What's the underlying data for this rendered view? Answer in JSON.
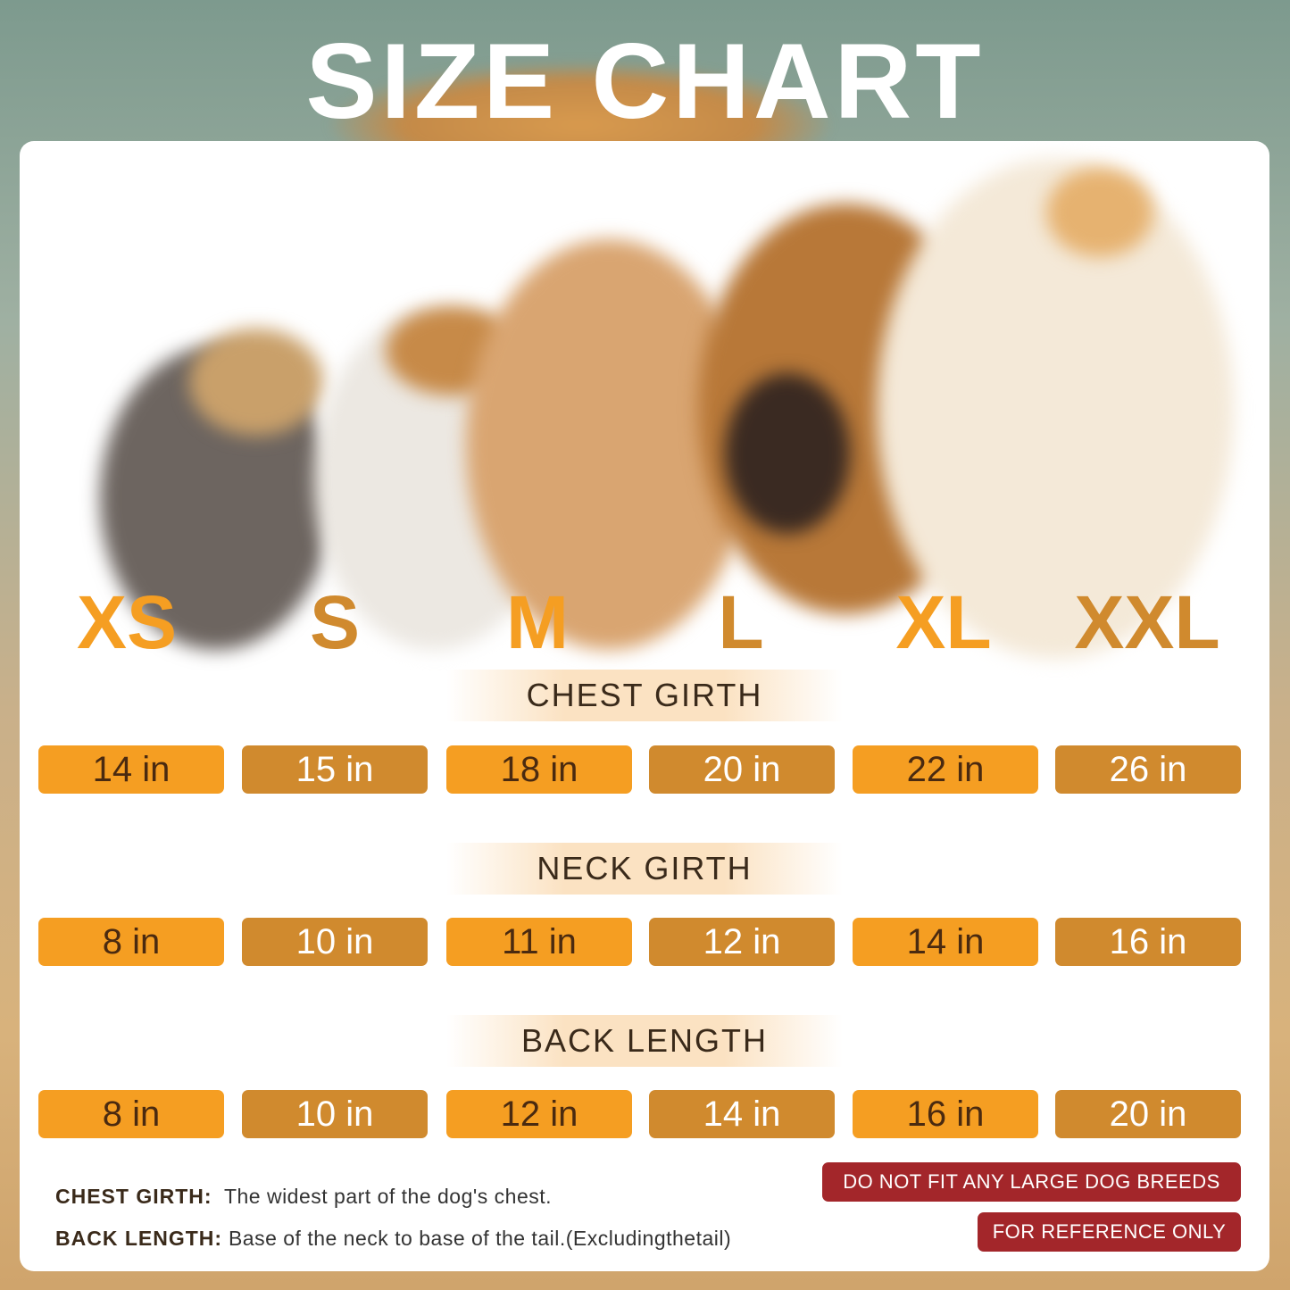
{
  "title": "SIZE CHART",
  "sizes": [
    {
      "label": "XS",
      "color": "#f59e22"
    },
    {
      "label": "S",
      "color": "#d08a2e"
    },
    {
      "label": "M",
      "color": "#f59e22"
    },
    {
      "label": "L",
      "color": "#d08a2e"
    },
    {
      "label": "XL",
      "color": "#f59e22"
    },
    {
      "label": "XXL",
      "color": "#d08a2e"
    }
  ],
  "sections": [
    {
      "title": "CHEST GIRTH",
      "values": [
        "14 in",
        "15 in",
        "18 in",
        "20 in",
        "22 in",
        "26 in"
      ]
    },
    {
      "title": "NECK GIRTH",
      "values": [
        "8 in",
        "10 in",
        "11 in",
        "12 in",
        "14 in",
        "16 in"
      ]
    },
    {
      "title": "BACK LENGTH",
      "values": [
        "8 in",
        "10 in",
        "12 in",
        "14 in",
        "16 in",
        "20 in"
      ]
    }
  ],
  "notes": [
    {
      "term": "CHEST GIRTH:",
      "text": "The widest part of the dog's chest."
    },
    {
      "term": "BACK LENGTH:",
      "text": "Base of the neck to base of the tail.(Excludingthetail)"
    }
  ],
  "warnings": [
    "DO NOT FIT ANY LARGE DOG BREEDS",
    "FOR REFERENCE ONLY"
  ],
  "colors": {
    "orange": "#f59e22",
    "brown": "#d08a2e",
    "warning": "#a3262a"
  }
}
